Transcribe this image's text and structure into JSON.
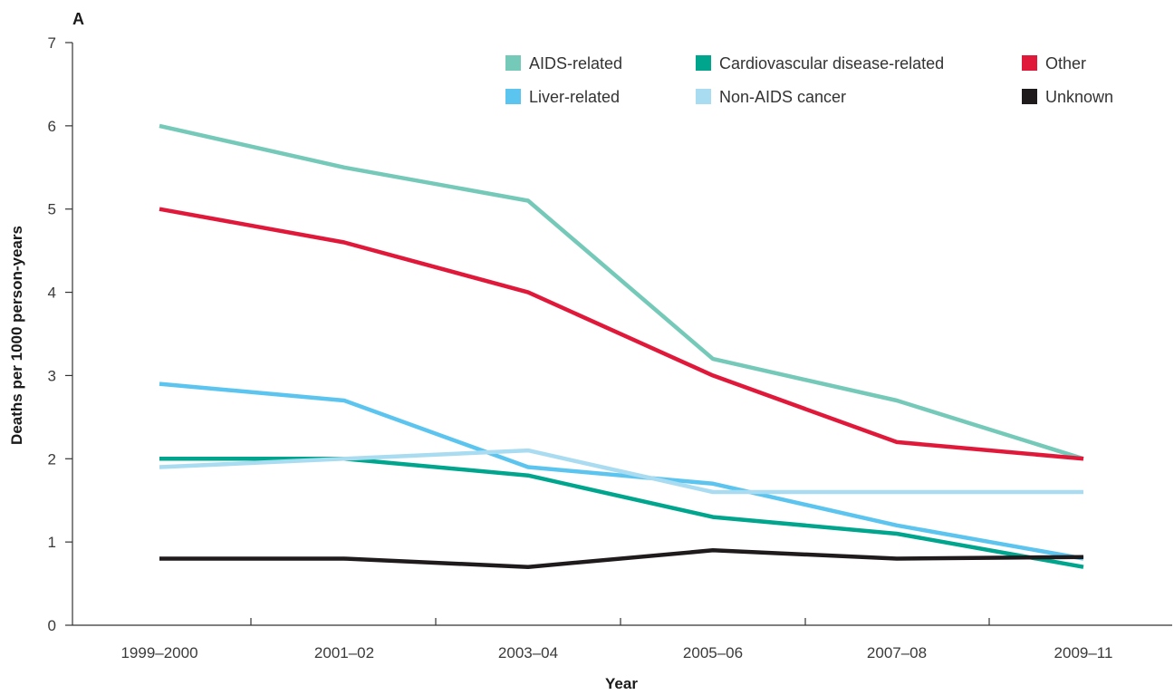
{
  "chart_data": {
    "type": "line",
    "panel_label": "A",
    "xlabel": "Year",
    "ylabel": "Deaths per 1000 person-years",
    "categories": [
      "1999–2000",
      "2001–02",
      "2003–04",
      "2005–06",
      "2007–08",
      "2009–11"
    ],
    "ylim": [
      0,
      7
    ],
    "yticks": [
      "0",
      "1",
      "2",
      "3",
      "4",
      "5",
      "6",
      "7"
    ],
    "grid": false,
    "legend_position": "top-right",
    "series": [
      {
        "name": "AIDS-related",
        "color": "#74c9b8",
        "values": [
          6.0,
          5.5,
          5.1,
          3.2,
          2.7,
          2.0
        ]
      },
      {
        "name": "Cardiovascular disease-related",
        "color": "#00a58d",
        "values": [
          2.0,
          2.0,
          1.8,
          1.3,
          1.1,
          0.7
        ]
      },
      {
        "name": "Other",
        "color": "#e0193a",
        "values": [
          5.0,
          4.6,
          4.0,
          3.0,
          2.2,
          2.0
        ]
      },
      {
        "name": "Liver-related",
        "color": "#5bc4ef",
        "values": [
          2.9,
          2.7,
          1.9,
          1.7,
          1.2,
          0.8
        ]
      },
      {
        "name": "Non-AIDS cancer",
        "color": "#a9dcf0",
        "values": [
          1.9,
          2.0,
          2.1,
          1.6,
          1.6,
          1.6
        ]
      },
      {
        "name": "Unknown",
        "color": "#1f1a1c",
        "values": [
          0.8,
          0.8,
          0.7,
          0.9,
          0.8,
          0.82
        ]
      }
    ]
  }
}
